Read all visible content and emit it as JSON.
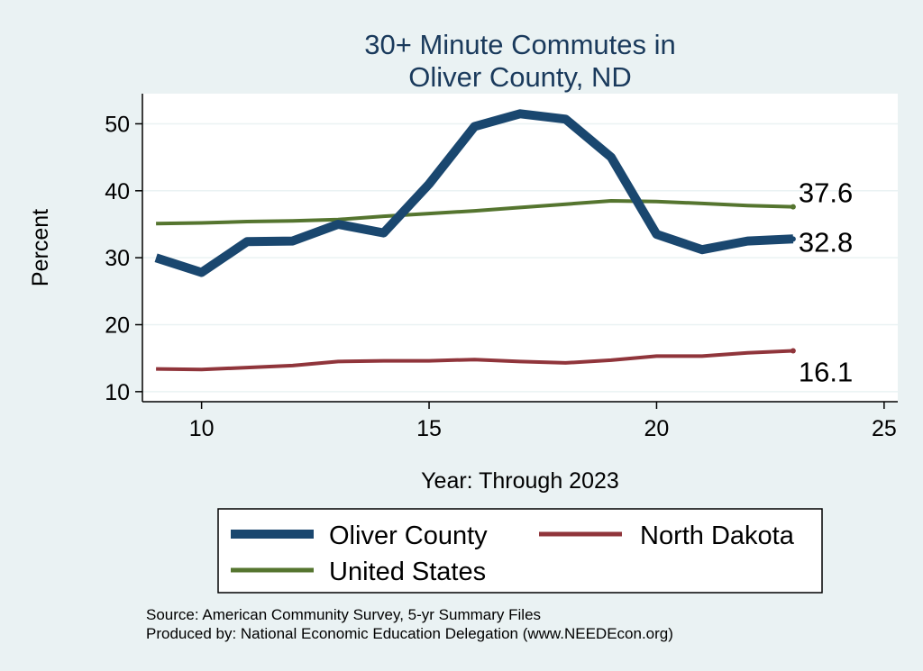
{
  "chart_data": {
    "type": "line",
    "title": [
      "30+ Minute Commutes in",
      "Oliver County, ND"
    ],
    "xlabel": "Year: Through 2023",
    "ylabel": "Percent",
    "xlim": [
      8.7,
      25.3
    ],
    "ylim": [
      8.5,
      54.5
    ],
    "xticks": [
      10,
      15,
      20,
      25
    ],
    "yticks": [
      10,
      20,
      30,
      40,
      50
    ],
    "grid": true,
    "x": [
      9,
      10,
      11,
      12,
      13,
      14,
      15,
      16,
      17,
      18,
      19,
      20,
      21,
      22,
      23
    ],
    "series": [
      {
        "name": "Oliver County",
        "color": "#1a476f",
        "values": [
          30.0,
          27.8,
          32.4,
          32.5,
          35.0,
          33.7,
          41.0,
          49.6,
          51.5,
          50.7,
          45.0,
          33.5,
          31.2,
          32.5,
          32.8
        ],
        "end_label": "32.8"
      },
      {
        "name": "North Dakota",
        "color": "#90353b",
        "values": [
          13.4,
          13.3,
          13.6,
          13.9,
          14.5,
          14.6,
          14.6,
          14.8,
          14.5,
          14.3,
          14.7,
          15.3,
          15.3,
          15.8,
          16.1
        ],
        "end_label": "16.1"
      },
      {
        "name": "United States",
        "color": "#55752f",
        "values": [
          35.1,
          35.2,
          35.4,
          35.5,
          35.7,
          36.2,
          36.6,
          37.0,
          37.5,
          38.0,
          38.5,
          38.4,
          38.1,
          37.8,
          37.6
        ],
        "end_label": "37.6"
      }
    ],
    "legend": {
      "position": "bottom",
      "items": [
        "Oliver County",
        "North Dakota",
        "United States"
      ]
    },
    "notes": [
      "Source: American Community Survey, 5-yr Summary Files",
      "Produced by: National Economic Education Delegation (www.NEEDEcon.org)"
    ]
  }
}
